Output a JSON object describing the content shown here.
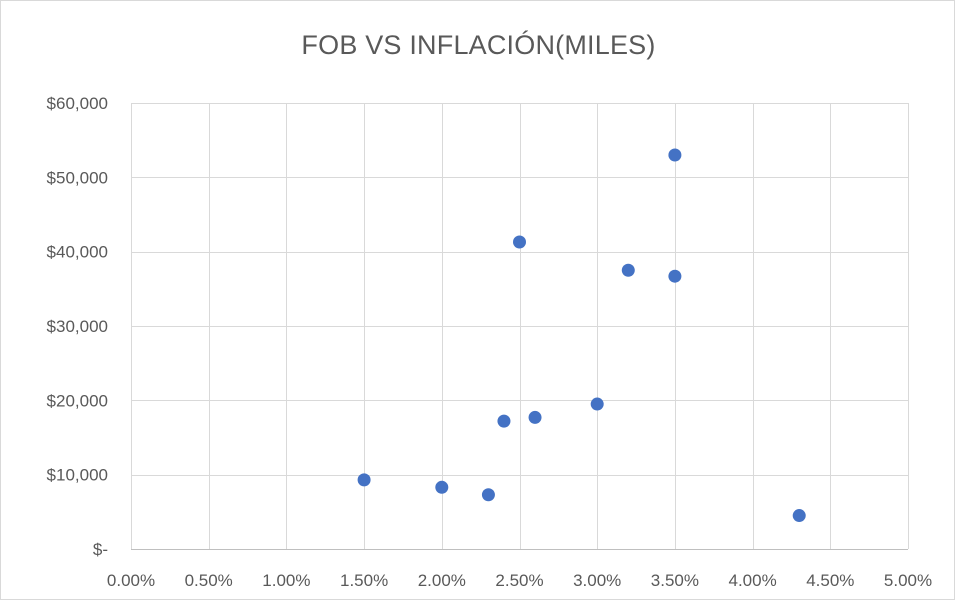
{
  "chart_data": {
    "type": "scatter",
    "title": "FOB VS INFLACIÓN(MILES)",
    "xlabel": "",
    "ylabel": "",
    "xlim": [
      0.0,
      0.05
    ],
    "ylim": [
      0,
      60000
    ],
    "x_ticks": [
      0.0,
      0.005,
      0.01,
      0.015,
      0.02,
      0.025,
      0.03,
      0.035,
      0.04,
      0.045,
      0.05
    ],
    "x_tick_labels": [
      "0.00%",
      "0.50%",
      "1.00%",
      "1.50%",
      "2.00%",
      "2.50%",
      "3.00%",
      "3.50%",
      "4.00%",
      "4.50%",
      "5.00%"
    ],
    "y_ticks": [
      0,
      10000,
      20000,
      30000,
      40000,
      50000,
      60000
    ],
    "y_tick_labels": [
      "$-",
      "$10,000",
      "$20,000",
      "$30,000",
      "$40,000",
      "$50,000",
      "$60,000"
    ],
    "grid": true,
    "legend": "none",
    "marker_color": "#4472c4",
    "points": [
      {
        "x": 0.015,
        "y": 9300
      },
      {
        "x": 0.02,
        "y": 8300
      },
      {
        "x": 0.023,
        "y": 7300
      },
      {
        "x": 0.024,
        "y": 17200
      },
      {
        "x": 0.025,
        "y": 41300
      },
      {
        "x": 0.026,
        "y": 17700
      },
      {
        "x": 0.03,
        "y": 19500
      },
      {
        "x": 0.032,
        "y": 37500
      },
      {
        "x": 0.035,
        "y": 53000
      },
      {
        "x": 0.035,
        "y": 36700
      },
      {
        "x": 0.043,
        "y": 4500
      }
    ]
  }
}
